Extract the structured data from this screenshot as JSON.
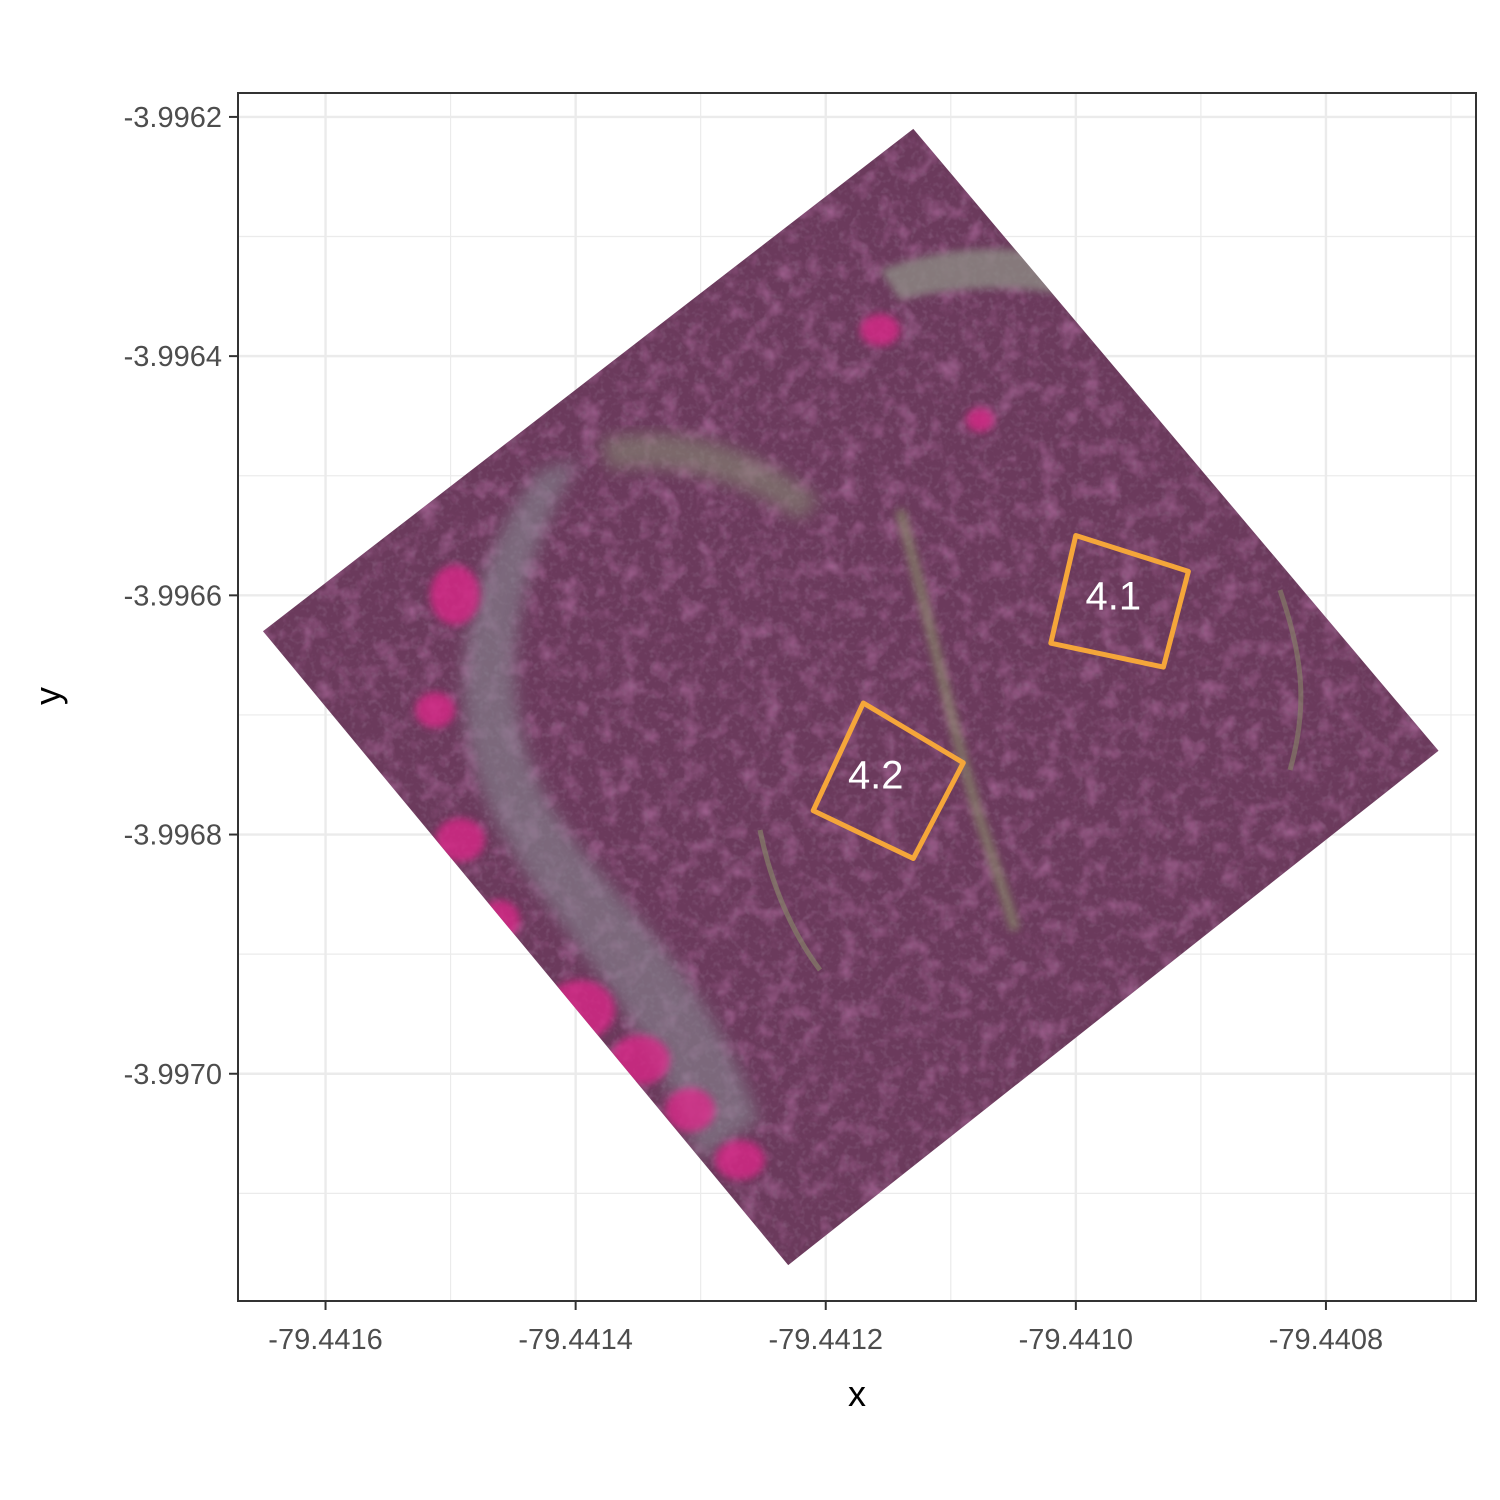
{
  "chart_data": {
    "type": "map",
    "xlabel": "x",
    "ylabel": "y",
    "x_ticks": [
      -79.4416,
      -79.4414,
      -79.4412,
      -79.441,
      -79.4408
    ],
    "x_tick_labels": [
      "-79.4416",
      "-79.4414",
      "-79.4412",
      "-79.4410",
      "-79.4408"
    ],
    "y_ticks": [
      -3.9962,
      -3.9964,
      -3.9966,
      -3.9968,
      -3.997
    ],
    "y_tick_labels": [
      "-3.9962",
      "-3.9964",
      "-3.9966",
      "-3.9968",
      "-3.9970"
    ],
    "xlim": [
      -79.44167,
      -79.44068
    ],
    "ylim": [
      -3.99719,
      -3.99618
    ],
    "grid": true,
    "raster": {
      "description_type": "false-color aerial imagery",
      "footprint": [
        {
          "x": -79.44165,
          "y": -3.99663
        },
        {
          "x": -79.44113,
          "y": -3.99621
        },
        {
          "x": -79.44071,
          "y": -3.99673
        },
        {
          "x": -79.44123,
          "y": -3.99716
        }
      ],
      "base_color": "#6b3a5c",
      "highlight_color": "#e0278a",
      "path_color": "#8a8a6a",
      "road_color": "#8f8f86"
    },
    "polygons": [
      {
        "label": "4.1",
        "color": "#f5a63a",
        "label_at": {
          "x": -79.44097,
          "y": -3.9966
        },
        "vertices": [
          {
            "x": -79.441,
            "y": -3.99655
          },
          {
            "x": -79.44091,
            "y": -3.99658
          },
          {
            "x": -79.44093,
            "y": -3.99666
          },
          {
            "x": -79.44102,
            "y": -3.99664
          }
        ]
      },
      {
        "label": "4.2",
        "color": "#f5a63a",
        "label_at": {
          "x": -79.44116,
          "y": -3.99675
        },
        "vertices": [
          {
            "x": -79.44117,
            "y": -3.99669
          },
          {
            "x": -79.44109,
            "y": -3.99674
          },
          {
            "x": -79.44113,
            "y": -3.99682
          },
          {
            "x": -79.44121,
            "y": -3.99678
          }
        ]
      }
    ]
  }
}
